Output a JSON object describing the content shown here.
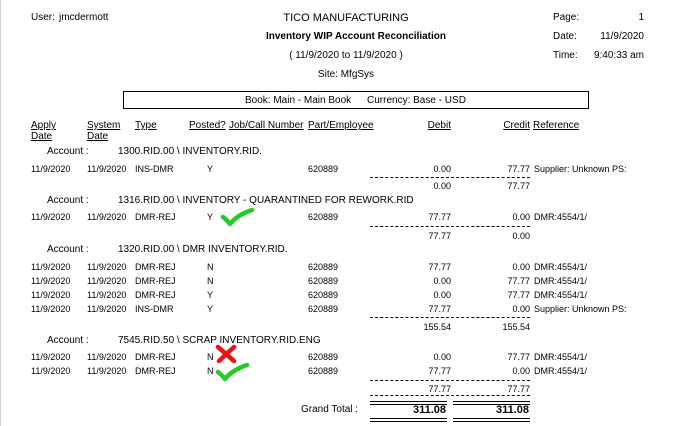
{
  "header": {
    "user_label": "User:",
    "user_name": "jmcdermott",
    "company": "TICO MANUFACTURING",
    "report_title": "Inventory WIP Account Reconciliation",
    "date_range": "( 11/9/2020 to 11/9/2020 )",
    "site": "Site: MfgSys",
    "page_label": "Page:",
    "page_value": "1",
    "date_label": "Date:",
    "date_value": "11/9/2020",
    "time_label": "Time:",
    "time_value": "9:40:33 am"
  },
  "book_line": {
    "book": "Book: Main - Main Book",
    "currency": "Currency: Base - USD"
  },
  "columns": {
    "apply_date_1": "Apply",
    "apply_date_2": "Date",
    "system_date_1": "System",
    "system_date_2": "Date",
    "type": "Type",
    "posted": "Posted?",
    "job": "Job/Call Number",
    "part": "Part/Employee",
    "debit": "Debit",
    "credit": "Credit",
    "reference": "Reference"
  },
  "account_label": "Account :",
  "accounts": [
    {
      "name": "1300.RID.00 \\ INVENTORY.RID.",
      "rows": [
        {
          "apply": "11/9/2020",
          "system": "11/9/2020",
          "type": "INS-DMR",
          "posted": "Y",
          "part": "620889",
          "debit": "0.00",
          "credit": "77.77",
          "ref": "Supplier: Unknown PS:"
        }
      ],
      "total_debit": "0.00",
      "total_credit": "77.77"
    },
    {
      "name": "1316.RID.00 \\ INVENTORY - QUARANTINED FOR REWORK.RID",
      "rows": [
        {
          "apply": "11/9/2020",
          "system": "11/9/2020",
          "type": "DMR-REJ",
          "posted": "Y",
          "part": "620889",
          "debit": "77.77",
          "credit": "0.00",
          "ref": "DMR:4554/1/"
        }
      ],
      "total_debit": "77.77",
      "total_credit": "0.00"
    },
    {
      "name": "1320.RID.00 \\ DMR INVENTORY.RID.",
      "rows": [
        {
          "apply": "11/9/2020",
          "system": "11/9/2020",
          "type": "DMR-REJ",
          "posted": "N",
          "part": "620889",
          "debit": "77.77",
          "credit": "0.00",
          "ref": "DMR:4554/1/"
        },
        {
          "apply": "11/9/2020",
          "system": "11/9/2020",
          "type": "DMR-REJ",
          "posted": "N",
          "part": "620889",
          "debit": "0.00",
          "credit": "77.77",
          "ref": "DMR:4554/1/"
        },
        {
          "apply": "11/9/2020",
          "system": "11/9/2020",
          "type": "DMR-REJ",
          "posted": "Y",
          "part": "620889",
          "debit": "0.00",
          "credit": "77.77",
          "ref": "DMR:4554/1/"
        },
        {
          "apply": "11/9/2020",
          "system": "11/9/2020",
          "type": "INS-DMR",
          "posted": "Y",
          "part": "620889",
          "debit": "77.77",
          "credit": "0.00",
          "ref": "Supplier: Unknown PS:"
        }
      ],
      "total_debit": "155.54",
      "total_credit": "155.54"
    },
    {
      "name": "7545.RID.50 \\ SCRAP INVENTORY.RID.ENG",
      "rows": [
        {
          "apply": "11/9/2020",
          "system": "11/9/2020",
          "type": "DMR-REJ",
          "posted": "N",
          "part": "620889",
          "debit": "0.00",
          "credit": "77.77",
          "ref": "DMR:4554/1/"
        },
        {
          "apply": "11/9/2020",
          "system": "11/9/2020",
          "type": "DMR-REJ",
          "posted": "N",
          "part": "620889",
          "debit": "77.77",
          "credit": "0.00",
          "ref": "DMR:4554/1/"
        }
      ],
      "total_debit": "77.77",
      "total_credit": "77.77"
    }
  ],
  "grand_total": {
    "label": "Grand Total :",
    "debit": "311.08",
    "credit": "311.08"
  },
  "annotations": {
    "check_color": "#22cc22",
    "cross_color": "#ee1111",
    "marks": [
      "green-checkmark",
      "green-checkmark",
      "red-x-mark",
      "green-checkmark"
    ]
  }
}
